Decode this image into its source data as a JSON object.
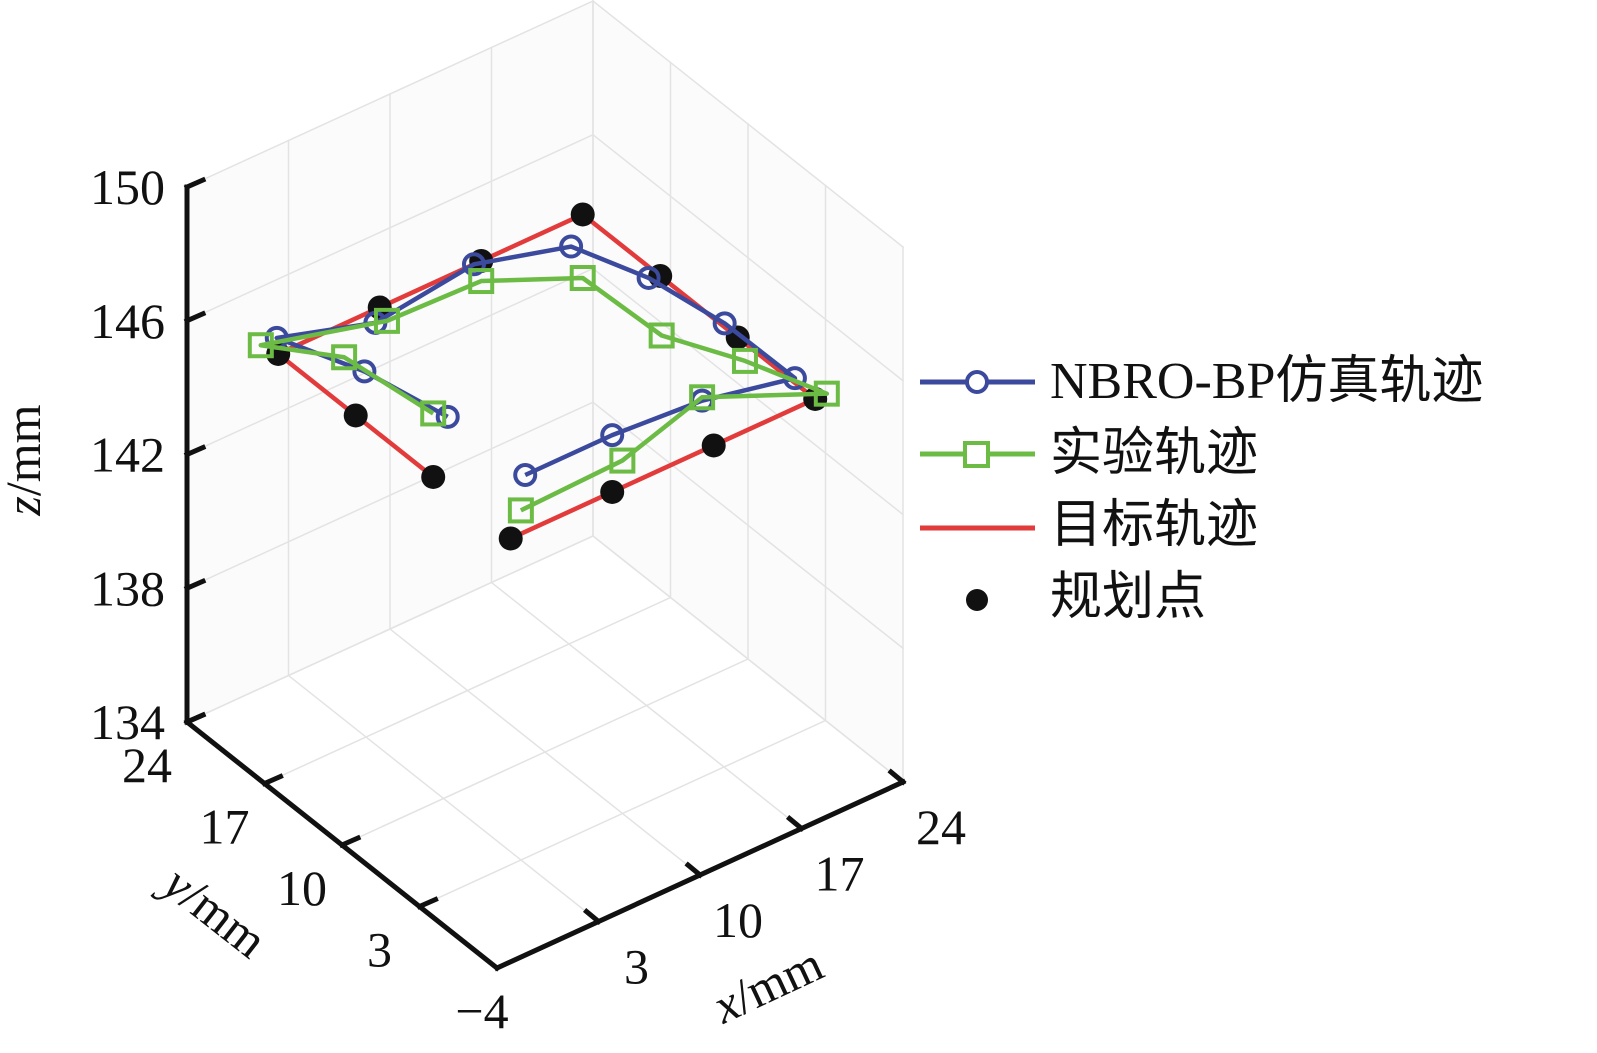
{
  "chart_data": {
    "type": "line3d",
    "xlabel": {
      "var": "x",
      "unit": "/mm"
    },
    "ylabel": {
      "var": "y",
      "unit": "/mm"
    },
    "zlabel": {
      "var": "z",
      "unit": "/mm"
    },
    "xlim": [
      -4,
      24
    ],
    "ylim": [
      -4,
      24
    ],
    "zlim": [
      134,
      150
    ],
    "xticks": [
      3,
      10,
      17,
      24
    ],
    "xtick_labels": [
      "3",
      "10",
      "17",
      "24"
    ],
    "yticks": [
      -4,
      3,
      10,
      17,
      24
    ],
    "ytick_labels": [
      "−4",
      "3",
      "10",
      "17",
      "24"
    ],
    "zticks": [
      134,
      138,
      142,
      146,
      150
    ],
    "ztick_labels": [
      "134",
      "138",
      "142",
      "146",
      "150"
    ],
    "grid": true,
    "legend_position": "right",
    "series": [
      {
        "name": "NBRO-BP仿真轨迹",
        "color": "#3c4a9e",
        "marker": "circle",
        "line": true,
        "points": [
          [
            1.0,
            7,
            146.6
          ],
          [
            0.6,
            14,
            146.2
          ],
          [
            -0.1,
            21,
            145.5
          ],
          [
            6.7,
            21,
            144.6
          ],
          [
            13.5,
            21,
            145.0
          ],
          [
            20.2,
            21,
            144.2
          ],
          [
            20.2,
            14,
            145.1
          ],
          [
            20.1,
            7,
            145.6
          ],
          [
            19.6,
            0,
            145.9
          ],
          [
            13.2,
            0,
            146.5
          ],
          [
            7.0,
            0,
            146.7
          ],
          [
            1.0,
            0,
            146.7
          ]
        ]
      },
      {
        "name": "实验轨迹",
        "color": "#6cbb45",
        "marker": "square",
        "line": true,
        "points": [
          [
            0,
            7,
            146.9
          ],
          [
            -0.8,
            14,
            146.9
          ],
          [
            -1.2,
            21,
            145.5
          ],
          [
            7.5,
            21,
            144.5
          ],
          [
            14,
            21,
            144.4
          ],
          [
            21,
            21,
            143.1
          ],
          [
            21.1,
            14,
            143.2
          ],
          [
            21.5,
            7,
            144.2
          ],
          [
            21.8,
            0,
            145.0
          ],
          [
            13.2,
            0,
            146.6
          ],
          [
            7.7,
            0,
            145.8
          ],
          [
            0.7,
            0,
            145.7
          ]
        ]
      },
      {
        "name": "目标轨迹",
        "color": "#e23b3b",
        "marker": "none",
        "line": true,
        "points": [
          [
            0,
            7,
            145
          ],
          [
            0,
            14,
            145
          ],
          [
            0,
            21,
            145
          ],
          [
            7,
            21,
            145
          ],
          [
            14,
            21,
            145
          ],
          [
            21,
            21,
            145
          ],
          [
            21,
            14,
            145
          ],
          [
            21,
            7,
            145
          ],
          [
            21,
            0,
            145
          ],
          [
            14,
            0,
            145
          ],
          [
            7,
            0,
            145
          ],
          [
            0,
            0,
            145
          ]
        ]
      },
      {
        "name": "规划点",
        "color": "#111111",
        "marker": "dot",
        "line": false,
        "points": [
          [
            0,
            7,
            145
          ],
          [
            0,
            14,
            145
          ],
          [
            0,
            21,
            145
          ],
          [
            7,
            21,
            145
          ],
          [
            14,
            21,
            145
          ],
          [
            21,
            21,
            145
          ],
          [
            21,
            14,
            145
          ],
          [
            21,
            7,
            145
          ],
          [
            21,
            0,
            145
          ],
          [
            14,
            0,
            145
          ],
          [
            7,
            0,
            145
          ],
          [
            0,
            0,
            145
          ]
        ]
      }
    ]
  }
}
